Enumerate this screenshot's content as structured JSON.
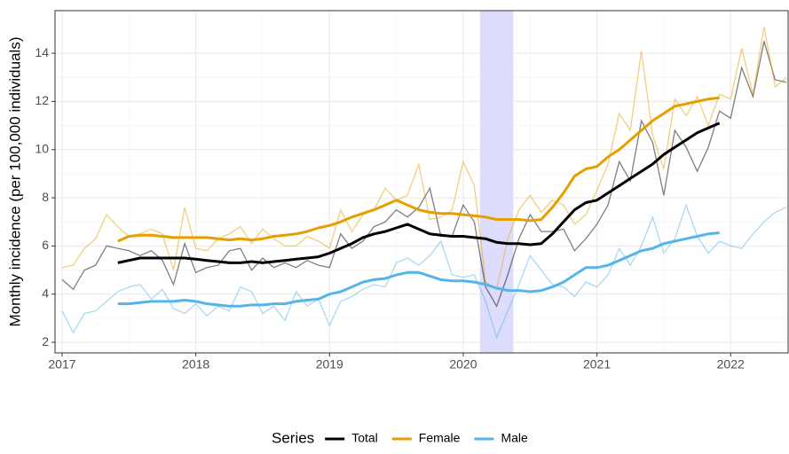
{
  "chart_data": {
    "type": "line",
    "ylabel": "Monthly incidence (per 100,000 individuals)",
    "legend_title": "Series",
    "legend": "bottom",
    "grid": true,
    "shade": {
      "x0": 2020.125,
      "x1": 2020.375,
      "color": "#dedcfc"
    },
    "xlim": [
      2016.947,
      2022.43
    ],
    "xticks": [
      2017,
      2018,
      2019,
      2020,
      2021,
      2022
    ],
    "ylim": [
      1.56,
      15.77
    ],
    "yticks": [
      2,
      4,
      6,
      8,
      10,
      12,
      14
    ],
    "x": [
      2017,
      2017.083,
      2017.167,
      2017.25,
      2017.333,
      2017.417,
      2017.5,
      2017.583,
      2017.667,
      2017.75,
      2017.833,
      2017.917,
      2018,
      2018.083,
      2018.167,
      2018.25,
      2018.333,
      2018.417,
      2018.5,
      2018.583,
      2018.667,
      2018.75,
      2018.833,
      2018.917,
      2019,
      2019.083,
      2019.167,
      2019.25,
      2019.333,
      2019.417,
      2019.5,
      2019.583,
      2019.667,
      2019.75,
      2019.833,
      2019.917,
      2020,
      2020.083,
      2020.167,
      2020.25,
      2020.333,
      2020.417,
      2020.5,
      2020.583,
      2020.667,
      2020.75,
      2020.833,
      2020.917,
      2021,
      2021.083,
      2021.167,
      2021.25,
      2021.333,
      2021.417,
      2021.5,
      2021.583,
      2021.667,
      2021.75,
      2021.833,
      2021.917,
      2022,
      2022.083,
      2022.167,
      2022.25,
      2022.333,
      2022.417
    ],
    "series": [
      {
        "name": "Total",
        "color": "#000000",
        "values": [
          null,
          null,
          null,
          null,
          null,
          5.3,
          5.4,
          5.5,
          5.5,
          5.5,
          5.5,
          5.5,
          5.45,
          5.4,
          5.35,
          5.3,
          5.3,
          5.35,
          5.3,
          5.35,
          5.4,
          5.45,
          5.5,
          5.55,
          5.7,
          5.9,
          6.1,
          6.35,
          6.5,
          6.6,
          6.75,
          6.9,
          6.7,
          6.5,
          6.45,
          6.4,
          6.4,
          6.35,
          6.3,
          6.15,
          6.1,
          6.1,
          6.05,
          6.1,
          6.5,
          7.0,
          7.5,
          7.8,
          7.9,
          8.2,
          8.5,
          8.8,
          9.1,
          9.4,
          9.8,
          10.1,
          10.4,
          10.7,
          10.9,
          11.1,
          null,
          null,
          null,
          null,
          null,
          null
        ],
        "raw_values": [
          4.6,
          4.2,
          5.0,
          5.2,
          6.0,
          5.9,
          5.8,
          5.6,
          5.8,
          5.4,
          4.4,
          6.1,
          4.9,
          5.1,
          5.2,
          5.8,
          5.9,
          5.0,
          5.5,
          5.1,
          5.3,
          5.1,
          5.4,
          5.2,
          5.1,
          6.5,
          5.9,
          6.2,
          6.8,
          7.0,
          7.5,
          7.2,
          7.6,
          8.4,
          6.4,
          6.4,
          7.7,
          7.0,
          4.3,
          3.5,
          4.8,
          6.3,
          7.3,
          6.6,
          6.6,
          6.7,
          5.8,
          6.3,
          6.9,
          7.7,
          9.5,
          8.7,
          11.2,
          10.3,
          8.1,
          10.8,
          10.1,
          9.1,
          10.1,
          11.6,
          11.3,
          13.4,
          12.2,
          14.5,
          12.9,
          12.8
        ]
      },
      {
        "name": "Female",
        "color": "#e69f00",
        "values": [
          null,
          null,
          null,
          null,
          null,
          6.2,
          6.4,
          6.45,
          6.45,
          6.4,
          6.35,
          6.35,
          6.35,
          6.35,
          6.3,
          6.25,
          6.3,
          6.25,
          6.3,
          6.4,
          6.45,
          6.5,
          6.6,
          6.75,
          6.85,
          7.0,
          7.2,
          7.35,
          7.5,
          7.7,
          7.9,
          7.7,
          7.5,
          7.4,
          7.35,
          7.35,
          7.3,
          7.25,
          7.2,
          7.1,
          7.1,
          7.1,
          7.05,
          7.1,
          7.6,
          8.2,
          8.9,
          9.2,
          9.3,
          9.7,
          10.0,
          10.4,
          10.8,
          11.2,
          11.5,
          11.8,
          11.9,
          12.0,
          12.1,
          12.15,
          null,
          null,
          null,
          null,
          null,
          null
        ],
        "raw_values": [
          5.1,
          5.2,
          5.9,
          6.3,
          7.3,
          6.8,
          6.4,
          6.5,
          6.7,
          6.5,
          5.0,
          7.6,
          5.9,
          5.8,
          6.3,
          6.5,
          6.8,
          6.1,
          6.7,
          6.3,
          6.0,
          6.0,
          6.4,
          6.2,
          5.9,
          7.5,
          6.6,
          7.3,
          7.5,
          8.4,
          7.9,
          8.1,
          9.4,
          7.1,
          7.2,
          7.5,
          9.5,
          8.5,
          4.5,
          4.2,
          6.3,
          7.5,
          8.1,
          7.4,
          7.9,
          7.7,
          6.9,
          7.3,
          8.3,
          9.4,
          11.5,
          10.8,
          14.1,
          10.6,
          9.2,
          12.1,
          11.4,
          12.2,
          11.0,
          12.3,
          12.1,
          14.2,
          12.3,
          15.1,
          12.6,
          13.0
        ]
      },
      {
        "name": "Male",
        "color": "#56b4e9",
        "values": [
          null,
          null,
          null,
          null,
          null,
          3.6,
          3.6,
          3.65,
          3.7,
          3.7,
          3.7,
          3.75,
          3.7,
          3.6,
          3.55,
          3.5,
          3.5,
          3.55,
          3.55,
          3.6,
          3.6,
          3.7,
          3.75,
          3.8,
          4.0,
          4.1,
          4.3,
          4.5,
          4.6,
          4.65,
          4.8,
          4.9,
          4.9,
          4.75,
          4.6,
          4.55,
          4.55,
          4.5,
          4.4,
          4.25,
          4.15,
          4.15,
          4.1,
          4.15,
          4.3,
          4.5,
          4.8,
          5.1,
          5.1,
          5.2,
          5.4,
          5.6,
          5.8,
          5.9,
          6.1,
          6.2,
          6.3,
          6.4,
          6.5,
          6.55,
          null,
          null,
          null,
          null,
          null,
          null
        ],
        "raw_values": [
          3.3,
          2.4,
          3.2,
          3.3,
          3.7,
          4.1,
          4.3,
          4.4,
          3.8,
          4.2,
          3.4,
          3.2,
          3.6,
          3.1,
          3.5,
          3.3,
          4.3,
          4.1,
          3.2,
          3.5,
          2.9,
          4.1,
          3.5,
          3.8,
          2.7,
          3.7,
          3.9,
          4.2,
          4.4,
          4.3,
          5.3,
          5.5,
          5.2,
          5.6,
          6.2,
          4.8,
          4.7,
          4.8,
          3.7,
          2.2,
          3.3,
          4.4,
          5.6,
          5.0,
          4.4,
          4.3,
          3.9,
          4.5,
          4.3,
          4.8,
          5.9,
          5.2,
          6.0,
          7.2,
          5.7,
          6.3,
          7.7,
          6.4,
          5.7,
          6.2,
          6.0,
          5.9,
          6.5,
          7.0,
          7.4,
          7.6
        ]
      }
    ]
  }
}
